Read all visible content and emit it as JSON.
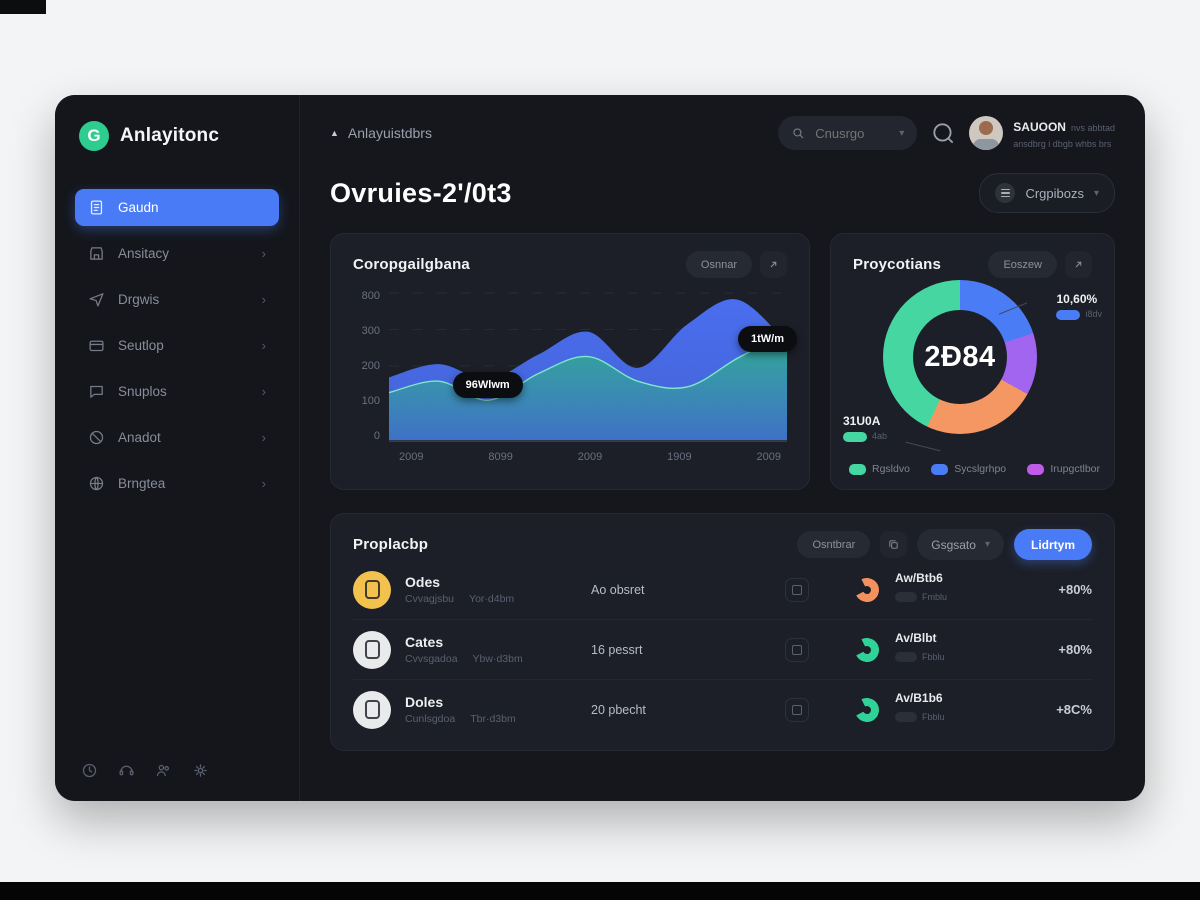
{
  "brand": {
    "name": "Anlayitonc",
    "logo_letter": "G",
    "logo_color": "#2ecc8f"
  },
  "icons": {
    "chevron_down": "▾",
    "chevron_right": "›",
    "breadcrumb_caret": "▲",
    "external_link": "↗"
  },
  "sidebar": {
    "items": [
      {
        "label": "Gaudn",
        "active": true
      },
      {
        "label": "Ansitacy",
        "active": false
      },
      {
        "label": "Drgwis",
        "active": false
      },
      {
        "label": "Seutlop",
        "active": false
      },
      {
        "label": "Snuplos",
        "active": false
      },
      {
        "label": "Anadot",
        "active": false
      },
      {
        "label": "Brngtea",
        "active": false
      }
    ]
  },
  "topbar": {
    "breadcrumb": "Anlayuistdbrs",
    "search_placeholder": "Cnusrgo",
    "user": {
      "name": "SAUOON",
      "meta1": "nvs abbtad",
      "meta2": "ansdbrg i dbgb whbs brs"
    }
  },
  "page": {
    "title": "Ovruies-2'/0t3",
    "period_label": "Crgpibozs"
  },
  "area_card": {
    "title": "Coropgailgbana",
    "pill_label": "Osnnar",
    "tooltip_left": "96Wlwm",
    "tooltip_right": "1tW/m"
  },
  "donut_card": {
    "title": "Proycotians",
    "pill_label": "Eoszew",
    "center_value": "2Ð84",
    "callout_top": {
      "value": "10,60%",
      "chip_label": "i8dv",
      "chip_color": "#4a7df5"
    },
    "callout_bottom": {
      "value": "31U0A",
      "chip_label": "4ab",
      "chip_color": "#45d6a1"
    },
    "legend": [
      {
        "label": "Rgsldvo",
        "color": "#45d6a1"
      },
      {
        "label": "Sycslgrhpo",
        "color": "#4a7df5"
      },
      {
        "label": "Irupgctlbor",
        "color": "#c05ce8"
      }
    ]
  },
  "table_card": {
    "title": "Proplacbp",
    "pill_label": "Osntbrar",
    "filter_label": "Gsgsato",
    "action_label": "Lidrtym",
    "rows": [
      {
        "title": "Odes",
        "sub1": "Cvvagjsbu",
        "sub2": "Yor·d4bm",
        "value": "Ao obsret",
        "metric": "Aw/Btb6",
        "chip": "Fmblu",
        "pct": "+80%",
        "icon_color": "#f2c14e",
        "arc_color": "#f5915c"
      },
      {
        "title": "Cates",
        "sub1": "Cvvsgadoa",
        "sub2": "Ybw·d3bm",
        "value": "16 pessrt",
        "metric": "Av/Blbt",
        "chip": "Fbblu",
        "pct": "+80%",
        "icon_color": "#e9eaec",
        "arc_color": "#2fd397"
      },
      {
        "title": "Doles",
        "sub1": "Cunlsgdoa",
        "sub2": "Tbr·d3bm",
        "value": "20 pbecht",
        "metric": "Av/B1b6",
        "chip": "Fbblu",
        "pct": "+8C%",
        "icon_color": "#e9eaec",
        "arc_color": "#2fd397"
      }
    ]
  },
  "chart_data": [
    {
      "type": "area",
      "title": "Coropgailgbana",
      "x_labels": [
        "2009",
        "8099",
        "2009",
        "1909",
        "2009"
      ],
      "y_labels": [
        "800",
        "300",
        "200",
        "100",
        "0"
      ],
      "ylim": [
        0,
        800
      ],
      "grid": "dashed-horizontal",
      "legend_position": "none",
      "series": [
        {
          "name": "blue-series",
          "color": "#4a6ef0",
          "values": [
            340,
            410,
            330,
            460,
            580,
            390,
            620,
            750,
            520
          ]
        },
        {
          "name": "green-series",
          "color": "#2fae8c",
          "values": [
            260,
            320,
            220,
            360,
            450,
            320,
            290,
            440,
            580
          ]
        }
      ]
    },
    {
      "type": "pie",
      "title": "Proycotians",
      "center_label": "2Ð84",
      "slices": [
        {
          "label": "Sycslgrhpo",
          "color": "#4a7df5",
          "percent": 20
        },
        {
          "label": "Irupgctlbor",
          "color": "#a265f0",
          "percent": 13
        },
        {
          "label": "4ab",
          "color": "#f59763",
          "percent": 24
        },
        {
          "label": "Rgsldvo",
          "color": "#45d6a1",
          "percent": 43
        }
      ],
      "legend_position": "bottom"
    }
  ]
}
